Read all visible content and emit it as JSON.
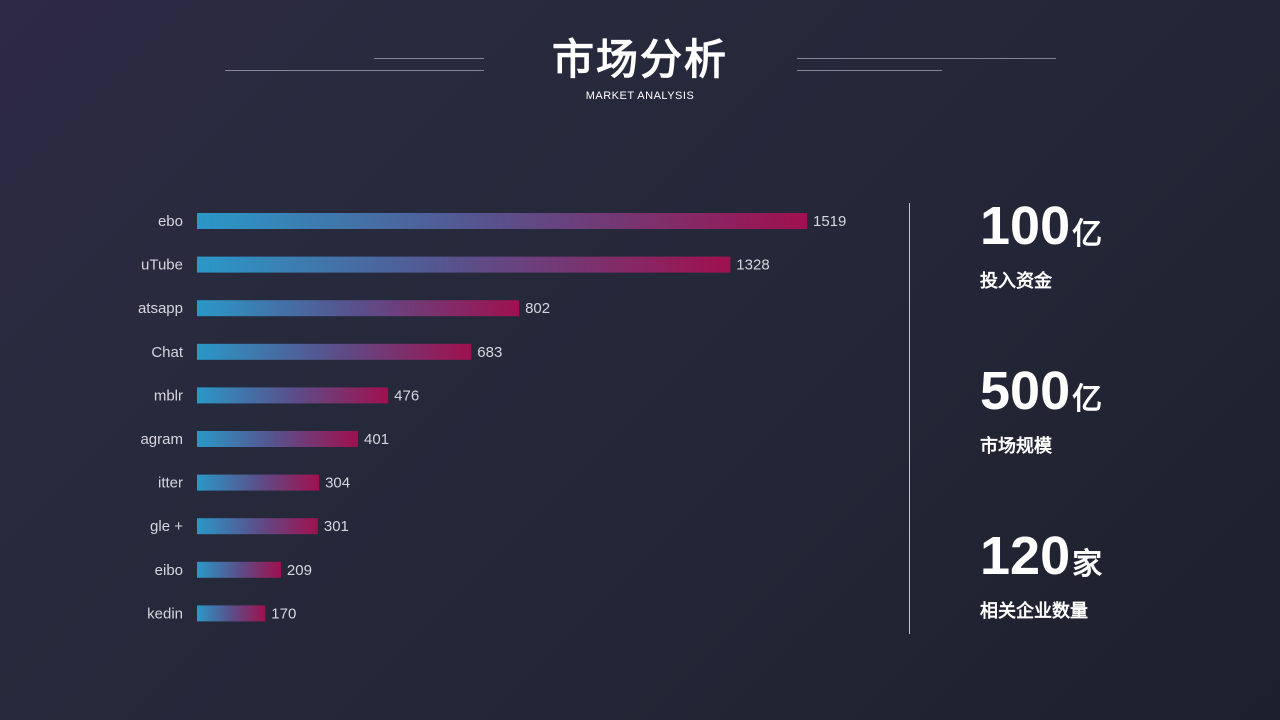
{
  "header": {
    "title": "市场分析",
    "subtitle": "MARKET ANALYSIS"
  },
  "chart_data": {
    "type": "bar",
    "orientation": "horizontal",
    "title": "",
    "xlabel": "",
    "ylabel": "",
    "categories": [
      "ebo",
      "uTube",
      "atsapp",
      "Chat",
      "mblr",
      "agram",
      "itter",
      "gle +",
      "eibo",
      "kedin"
    ],
    "values": [
      1519,
      1328,
      802,
      683,
      476,
      401,
      304,
      301,
      209,
      170
    ],
    "xlim": [
      0,
      1519
    ],
    "grid": false,
    "legend": "none",
    "colors": {
      "gradient_start": "#2a98c8",
      "gradient_mid": "#5a4f8a",
      "gradient_end": "#a0104e",
      "label": "#d6d6de"
    }
  },
  "stats": [
    {
      "value": "100",
      "unit": "亿",
      "label": "投入资金"
    },
    {
      "value": "500",
      "unit": "亿",
      "label": "市场规模"
    },
    {
      "value": "120",
      "unit": "家",
      "label": "相关企业数量"
    }
  ]
}
